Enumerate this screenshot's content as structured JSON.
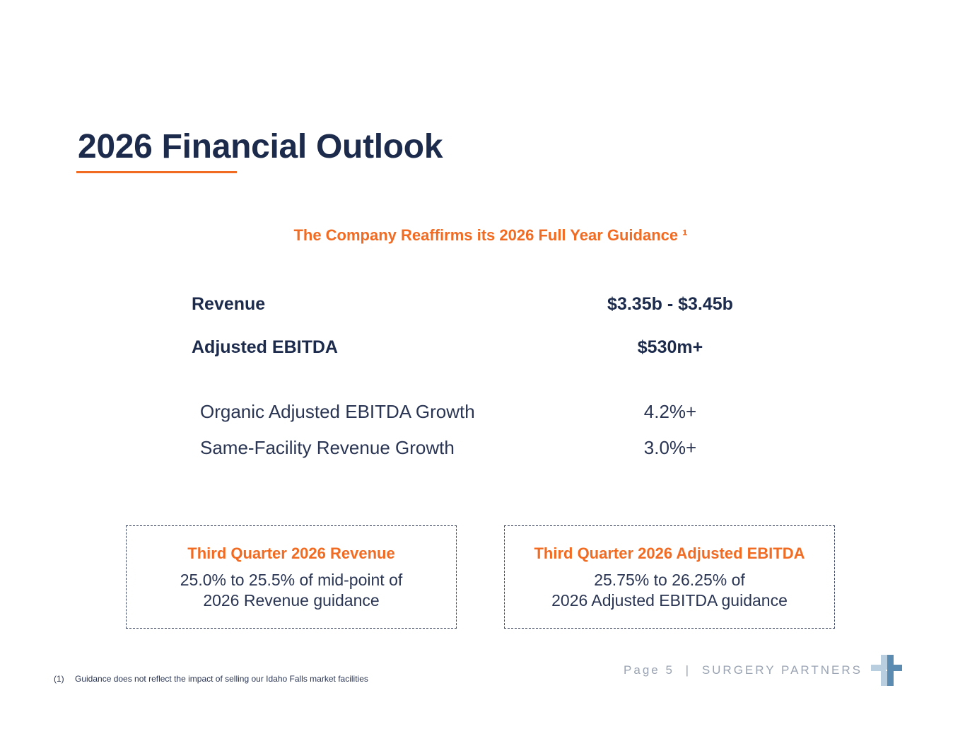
{
  "title": "2026 Financial Outlook",
  "subtitle": "The Company Reaffirms its 2026 Full Year Guidance ¹",
  "guidance": [
    {
      "label": "Revenue",
      "value": "$3.35b - $3.45b"
    },
    {
      "label": "Adjusted EBITDA",
      "value": "$530m+"
    }
  ],
  "growth": [
    {
      "label": "Organic Adjusted EBITDA Growth",
      "value": "4.2%+"
    },
    {
      "label": "Same-Facility Revenue Growth",
      "value": "3.0%+"
    }
  ],
  "boxes": [
    {
      "title": "Third Quarter 2026 Revenue",
      "line1": "25.0% to 25.5% of mid-point of",
      "line2": "2026 Revenue guidance"
    },
    {
      "title": "Third Quarter 2026 Adjusted EBITDA",
      "line1": "25.75% to 26.25% of",
      "line2": "2026 Adjusted EBITDA guidance"
    }
  ],
  "footnote": {
    "marker": "(1)",
    "text": "Guidance does not reflect the impact of selling our Idaho Falls market facilities"
  },
  "footer": {
    "page": "Page 5",
    "separator": "|",
    "company": "SURGERY PARTNERS"
  },
  "colors": {
    "navy": "#1c2a4c",
    "orange": "#f26b22",
    "logo_light": "#b9cfe0",
    "logo_dark": "#5b8bb0"
  },
  "logo_icon": "cross-logo-icon"
}
